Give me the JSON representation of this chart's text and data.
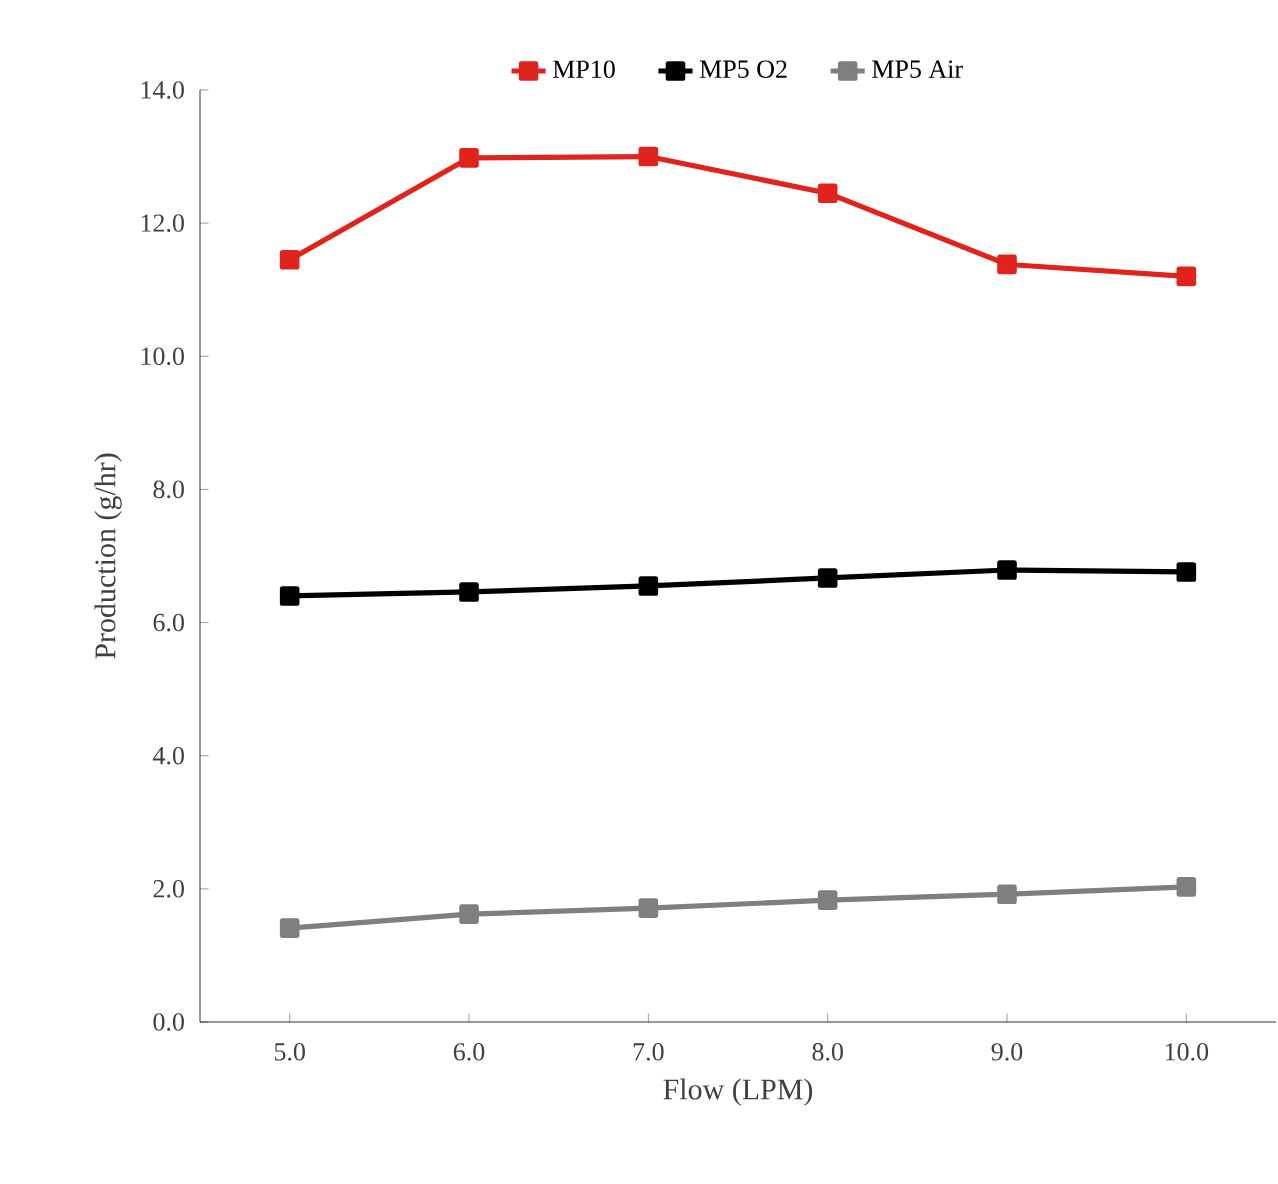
{
  "chart_data": {
    "type": "line",
    "xlabel": "Flow (LPM)",
    "ylabel": "Production (g/hr)",
    "x": [
      5,
      6,
      7,
      8,
      9,
      10
    ],
    "series": [
      {
        "name": "MP10",
        "color": "#e0231c",
        "values": [
          11.45,
          12.98,
          13.0,
          12.45,
          11.38,
          11.2
        ]
      },
      {
        "name": "MP5 O2",
        "color": "#000000",
        "values": [
          6.4,
          6.46,
          6.55,
          6.67,
          6.79,
          6.76
        ]
      },
      {
        "name": "MP5 Air",
        "color": "#7f7f7f",
        "values": [
          1.41,
          1.62,
          1.71,
          1.83,
          1.92,
          2.03
        ]
      }
    ],
    "xlim": [
      4.5,
      10.5
    ],
    "xticks": [
      {
        "value": 5,
        "label": "5.0"
      },
      {
        "value": 6,
        "label": "6.0"
      },
      {
        "value": 7,
        "label": "7.0"
      },
      {
        "value": 8,
        "label": "8.0"
      },
      {
        "value": 9,
        "label": "9.0"
      },
      {
        "value": 10,
        "label": "10.0"
      }
    ],
    "ylim": [
      0,
      14
    ],
    "yticks": [
      {
        "value": 0,
        "label": "0.0"
      },
      {
        "value": 2,
        "label": "2.0"
      },
      {
        "value": 4,
        "label": "4.0"
      },
      {
        "value": 6,
        "label": "6.0"
      },
      {
        "value": 8,
        "label": "8.0"
      },
      {
        "value": 10,
        "label": "10.0"
      },
      {
        "value": 12,
        "label": "12.0"
      },
      {
        "value": 14,
        "label": "14.0"
      }
    ],
    "grid": false,
    "legend": "top",
    "marker": "square",
    "line_style": "solid"
  }
}
